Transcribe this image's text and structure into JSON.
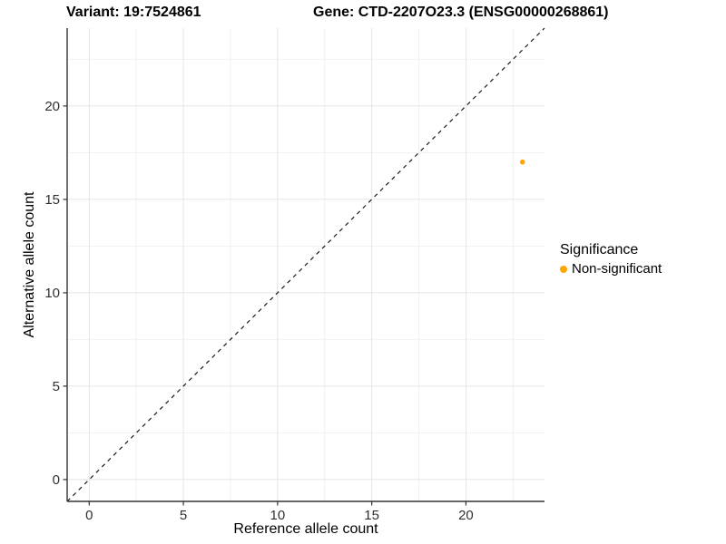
{
  "chart_data": {
    "type": "scatter",
    "titles": {
      "variant": "Variant: 19:7524861",
      "gene": "Gene: CTD-2207O23.3 (ENSG00000268861)"
    },
    "xlabel": "Reference allele count",
    "ylabel": "Alternative allele count",
    "xlim": [
      -1.17,
      24.17
    ],
    "ylim": [
      -1.17,
      24.17
    ],
    "xticks": [
      0,
      5,
      10,
      15,
      20
    ],
    "yticks": [
      0,
      5,
      10,
      15,
      20
    ],
    "minor_gridlines": [
      2.5,
      7.5,
      12.5,
      17.5,
      22.5
    ],
    "grid": true,
    "identity_line": {
      "equation": "y = x",
      "style": "dashed",
      "color": "#1A1A1A"
    },
    "series": [
      {
        "name": "Non-significant",
        "color": "#FFA500",
        "points": [
          {
            "x": 23,
            "y": 17
          }
        ]
      }
    ],
    "legend": {
      "position": "right",
      "title": "Significance",
      "items": [
        {
          "label": "Non-significant",
          "color": "#FFA500"
        }
      ]
    },
    "theme": {
      "background": "#FFFFFF",
      "grid_major": "#E4E4E4",
      "grid_minor": "#F1F1F1",
      "axis_line": "#333333",
      "tick_color": "#333333",
      "tick_text": "#303030"
    }
  }
}
